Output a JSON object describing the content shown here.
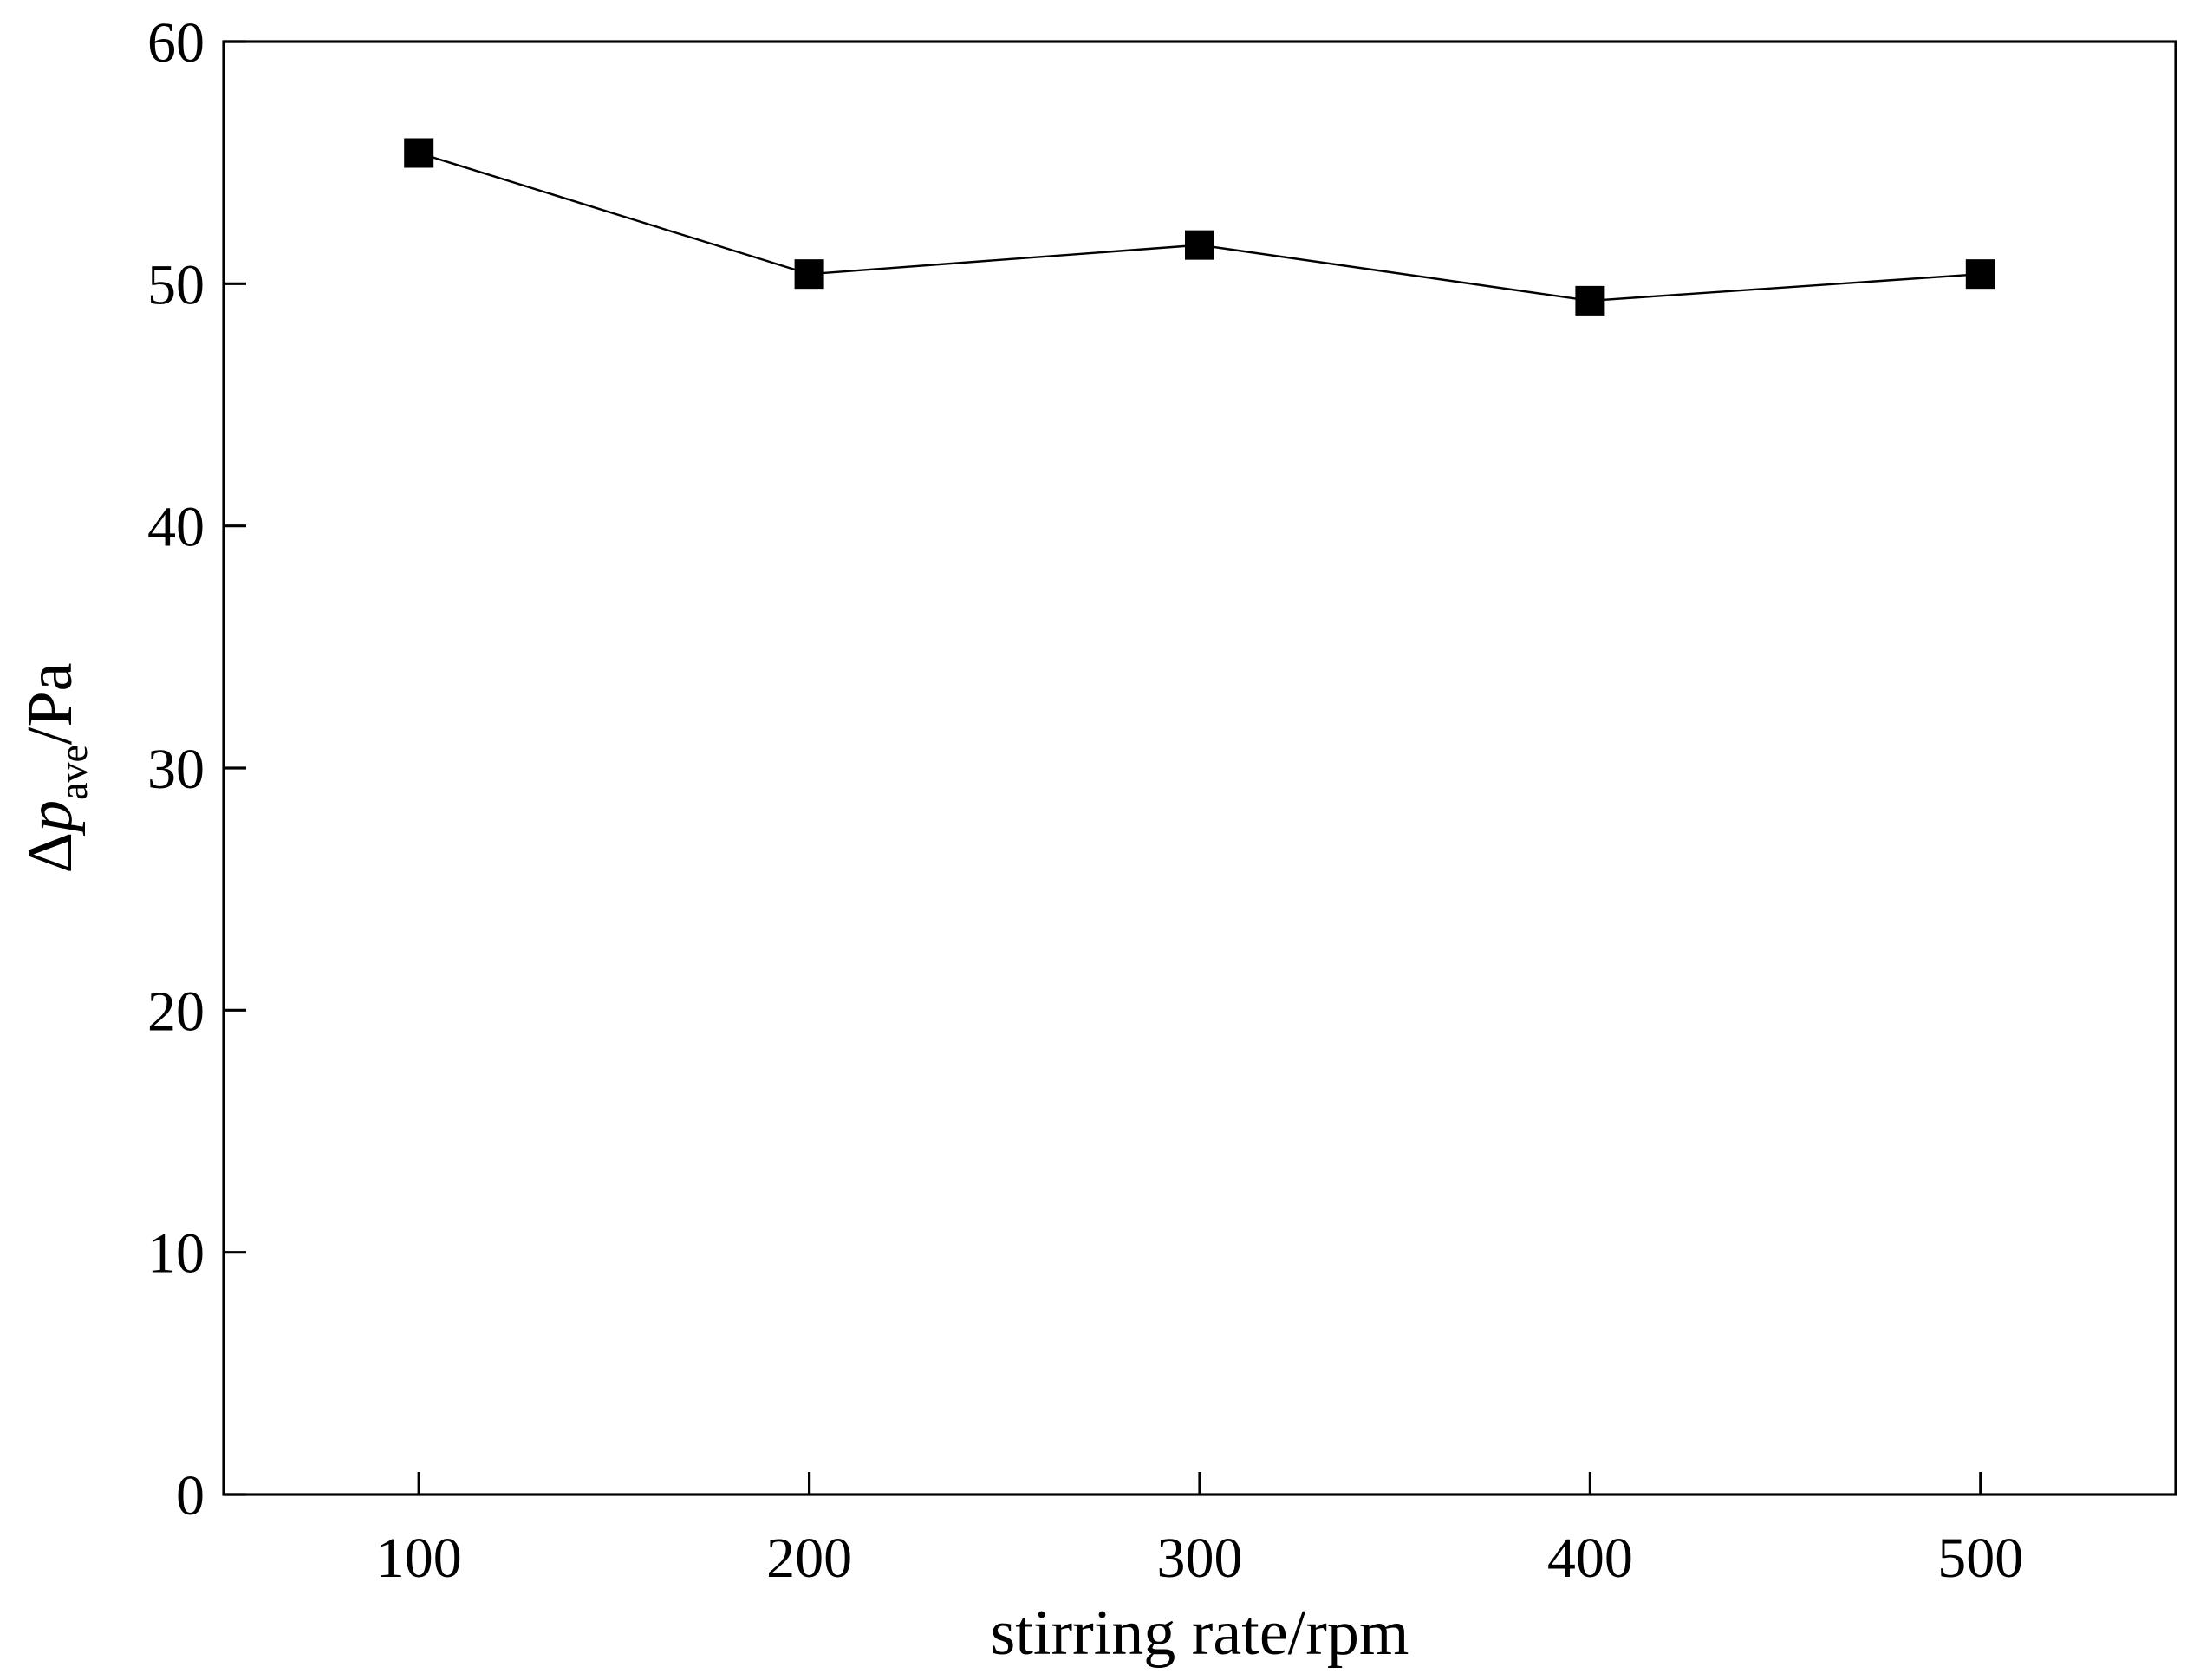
{
  "chart_data": {
    "type": "line",
    "xlabel": "stirring rate/rpm",
    "ylabel": {
      "prefix": "Δ",
      "symbol": "p",
      "subscript": "ave",
      "unit": "/Pa"
    },
    "xlim": [
      50,
      550
    ],
    "ylim": [
      0,
      60
    ],
    "x_ticks": [
      100,
      200,
      300,
      400,
      500
    ],
    "y_ticks": [
      0,
      10,
      20,
      30,
      40,
      50,
      60
    ],
    "grid": false,
    "marker": "square",
    "series": [
      {
        "x": [
          100,
          200,
          300,
          400,
          500
        ],
        "y": [
          55.4,
          50.4,
          51.6,
          49.3,
          50.4
        ]
      }
    ]
  }
}
